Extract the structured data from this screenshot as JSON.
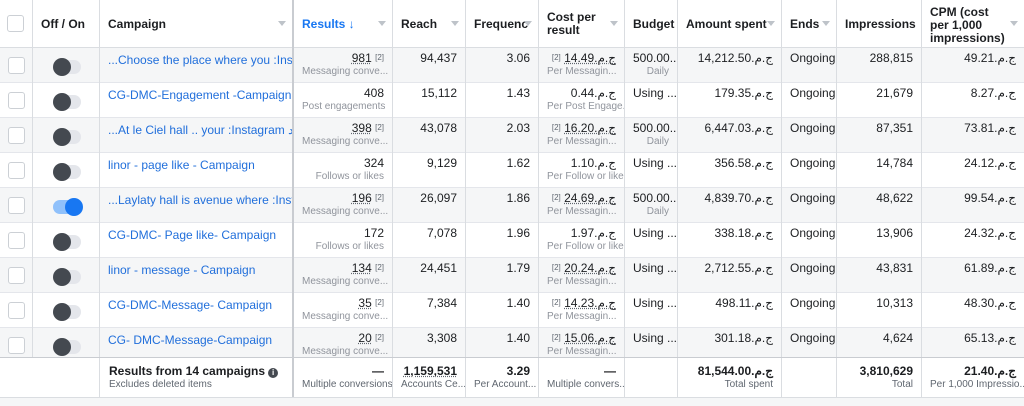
{
  "header": {
    "off_on": "Off / On",
    "campaign": "Campaign",
    "results": "Results ↓",
    "reach": "Reach",
    "frequency": "Frequenc",
    "cost_per_result": "Cost per result",
    "budget": "Budget",
    "amount_spent": "Amount spent",
    "ends": "Ends",
    "impressions": "Impressions",
    "cpm": "CPM (cost per 1,000 impressions)"
  },
  "rows": [
    {
      "name": "...Choose the place where you :Inst...",
      "toggle_on": false,
      "results": "981",
      "results_sup": "[2]",
      "results_sub": "Messaging conve...",
      "reach": "94,437",
      "frequency": "3.06",
      "cpr": "ج.م.14.49",
      "cpr_sup": "[2]",
      "cpr_sub": "Per Messagin...",
      "budget": "500.00...",
      "budget_sub": "Daily",
      "spent": "ج.م.14,212.50",
      "ends": "Ongoing",
      "impressions": "288,815",
      "cpm": "ج.م.49.21"
    },
    {
      "name": "CG-DMC-Engagement -Campaign",
      "toggle_on": false,
      "results": "408",
      "results_sup": "",
      "results_sub": "Post engagements",
      "reach": "15,112",
      "frequency": "1.43",
      "cpr": "ج.م.0.44",
      "cpr_sup": "",
      "cpr_sub": "Per Post Engage...",
      "budget": "Using ...",
      "budget_sub": "",
      "spent": "ج.م.179.35",
      "ends": "Ongoing",
      "impressions": "21,679",
      "cpm": "ج.م.8.27"
    },
    {
      "name": "...At le Ciel hall .. your :Instagram ورد",
      "toggle_on": false,
      "results": "398",
      "results_sup": "[2]",
      "results_sub": "Messaging conve...",
      "reach": "43,078",
      "frequency": "2.03",
      "cpr": "ج.م.16.20",
      "cpr_sup": "[2]",
      "cpr_sub": "Per Messagin...",
      "budget": "500.00...",
      "budget_sub": "Daily",
      "spent": "ج.م.6,447.03",
      "ends": "Ongoing",
      "impressions": "87,351",
      "cpm": "ج.م.73.81"
    },
    {
      "name": "linor - page like - Campaign",
      "toggle_on": false,
      "results": "324",
      "results_sup": "",
      "results_sub": "Follows or likes",
      "reach": "9,129",
      "frequency": "1.62",
      "cpr": "ج.م.1.10",
      "cpr_sup": "",
      "cpr_sub": "Per Follow or like",
      "budget": "Using ...",
      "budget_sub": "",
      "spent": "ج.م.356.58",
      "ends": "Ongoing",
      "impressions": "14,784",
      "cpm": "ج.م.24.12"
    },
    {
      "name": "...Laylaty hall is avenue where :Insta...",
      "toggle_on": true,
      "results": "196",
      "results_sup": "[2]",
      "results_sub": "Messaging conve...",
      "reach": "26,097",
      "frequency": "1.86",
      "cpr": "ج.م.24.69",
      "cpr_sup": "[2]",
      "cpr_sub": "Per Messagin...",
      "budget": "500.00...",
      "budget_sub": "Daily",
      "spent": "ج.م.4,839.70",
      "ends": "Ongoing",
      "impressions": "48,622",
      "cpm": "ج.م.99.54"
    },
    {
      "name": "CG-DMC- Page like- Campaign",
      "toggle_on": false,
      "results": "172",
      "results_sup": "",
      "results_sub": "Follows or likes",
      "reach": "7,078",
      "frequency": "1.96",
      "cpr": "ج.م.1.97",
      "cpr_sup": "",
      "cpr_sub": "Per Follow or like",
      "budget": "Using ...",
      "budget_sub": "",
      "spent": "ج.م.338.18",
      "ends": "Ongoing",
      "impressions": "13,906",
      "cpm": "ج.م.24.32"
    },
    {
      "name": "linor - message - Campaign",
      "toggle_on": false,
      "results": "134",
      "results_sup": "[2]",
      "results_sub": "Messaging conve...",
      "reach": "24,451",
      "frequency": "1.79",
      "cpr": "ج.م.20.24",
      "cpr_sup": "[2]",
      "cpr_sub": "Per Messagin...",
      "budget": "Using ...",
      "budget_sub": "",
      "spent": "ج.م.2,712.55",
      "ends": "Ongoing",
      "impressions": "43,831",
      "cpm": "ج.م.61.89"
    },
    {
      "name": "CG-DMC-Message- Campaign",
      "toggle_on": false,
      "results": "35",
      "results_sup": "[2]",
      "results_sub": "Messaging conve...",
      "reach": "7,384",
      "frequency": "1.40",
      "cpr": "ج.م.14.23",
      "cpr_sup": "[2]",
      "cpr_sub": "Per Messagin...",
      "budget": "Using ...",
      "budget_sub": "",
      "spent": "ج.م.498.11",
      "ends": "Ongoing",
      "impressions": "10,313",
      "cpm": "ج.م.48.30"
    },
    {
      "name": "CG- DMC-Message-Campaign",
      "toggle_on": false,
      "results": "20",
      "results_sup": "[2]",
      "results_sub": "Messaging conve...",
      "reach": "3,308",
      "frequency": "1.40",
      "cpr": "ج.م.15.06",
      "cpr_sup": "[2]",
      "cpr_sub": "Per Messagin...",
      "budget": "Using ...",
      "budget_sub": "",
      "spent": "ج.م.301.18",
      "ends": "Ongoing",
      "impressions": "4,624",
      "cpm": "ج.م.65.13"
    }
  ],
  "footer": {
    "title": "Results from 14 campaigns",
    "subtitle": "Excludes deleted items",
    "results": "—",
    "results_sub": "Multiple conversions",
    "reach": "1,159,531",
    "reach_sub": "Accounts Ce...",
    "frequency": "3.29",
    "frequency_sub": "Per Account...",
    "cpr": "—",
    "cpr_sub": "Multiple convers...",
    "spent": "ج.م.81,544.00",
    "spent_sub": "Total spent",
    "impressions": "3,810,629",
    "impressions_sub": "Total",
    "cpm": "ج.م.21.40",
    "cpm_sub": "Per 1,000 Impressio..."
  }
}
